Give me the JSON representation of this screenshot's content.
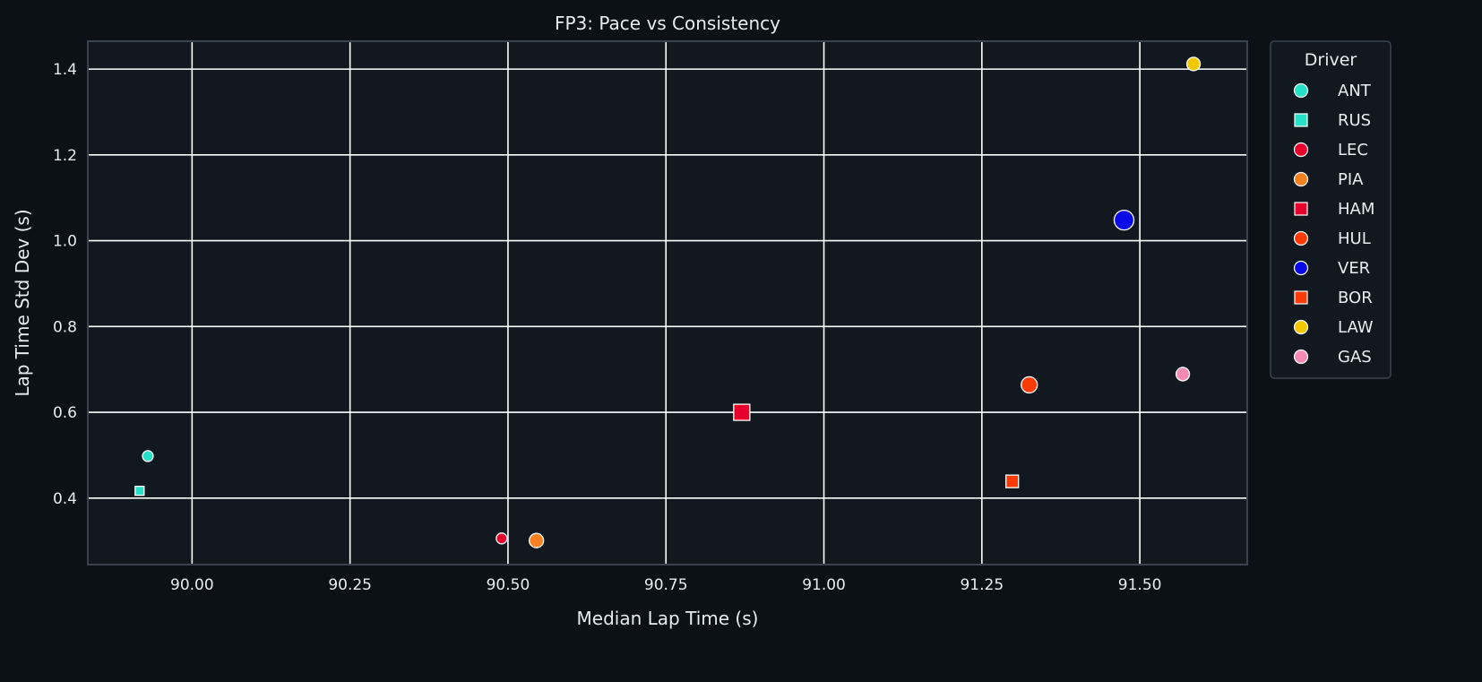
{
  "chart_data": {
    "type": "scatter",
    "title": "FP3: Pace vs Consistency",
    "xlabel": "Median Lap Time (s)",
    "ylabel": "Lap Time Std Dev (s)",
    "xlim": [
      89.835,
      91.67
    ],
    "ylim": [
      0.245,
      1.465
    ],
    "xticks": [
      90.0,
      90.25,
      90.5,
      90.75,
      91.0,
      91.25,
      91.5
    ],
    "xtick_labels": [
      "90.00",
      "90.25",
      "90.50",
      "90.75",
      "91.00",
      "91.25",
      "91.50"
    ],
    "yticks": [
      0.4,
      0.6,
      0.8,
      1.0,
      1.2,
      1.4
    ],
    "ytick_labels": [
      "0.4",
      "0.6",
      "0.8",
      "1.0",
      "1.2",
      "1.4"
    ],
    "grid": true,
    "legend": {
      "title": "Driver",
      "placement": "outside-right-top",
      "entries": [
        {
          "label": "ANT",
          "marker": "circle",
          "color": "#27e0c8"
        },
        {
          "label": "RUS",
          "marker": "square",
          "color": "#27e0c8"
        },
        {
          "label": "LEC",
          "marker": "circle",
          "color": "#e8002d"
        },
        {
          "label": "PIA",
          "marker": "circle",
          "color": "#f58020"
        },
        {
          "label": "HAM",
          "marker": "square",
          "color": "#e8002d"
        },
        {
          "label": "HUL",
          "marker": "circle",
          "color": "#fc3a06"
        },
        {
          "label": "VER",
          "marker": "circle",
          "color": "#0a0ae6"
        },
        {
          "label": "BOR",
          "marker": "square",
          "color": "#fc3a06"
        },
        {
          "label": "LAW",
          "marker": "circle",
          "color": "#f2c800"
        },
        {
          "label": "GAS",
          "marker": "circle",
          "color": "#f58bb4"
        }
      ]
    },
    "points": [
      {
        "driver": "ANT",
        "x": 89.93,
        "y": 0.498,
        "marker": "circle",
        "color": "#27e0c8",
        "size": 6
      },
      {
        "driver": "RUS",
        "x": 89.917,
        "y": 0.417,
        "marker": "square",
        "color": "#27e0c8",
        "size": 5
      },
      {
        "driver": "LEC",
        "x": 90.49,
        "y": 0.306,
        "marker": "circle",
        "color": "#e8002d",
        "size": 6
      },
      {
        "driver": "PIA",
        "x": 90.545,
        "y": 0.301,
        "marker": "circle",
        "color": "#f58020",
        "size": 8
      },
      {
        "driver": "HAM",
        "x": 90.87,
        "y": 0.6,
        "marker": "square",
        "color": "#e8002d",
        "size": 9
      },
      {
        "driver": "HUL",
        "x": 91.325,
        "y": 0.664,
        "marker": "circle",
        "color": "#fc3a06",
        "size": 9
      },
      {
        "driver": "VER",
        "x": 91.475,
        "y": 1.048,
        "marker": "circle",
        "color": "#0a0ae6",
        "size": 11
      },
      {
        "driver": "BOR",
        "x": 91.298,
        "y": 0.439,
        "marker": "square",
        "color": "#fc3a06",
        "size": 7
      },
      {
        "driver": "LAW",
        "x": 91.585,
        "y": 1.412,
        "marker": "circle",
        "color": "#f2c800",
        "size": 7.5
      },
      {
        "driver": "GAS",
        "x": 91.568,
        "y": 0.689,
        "marker": "circle",
        "color": "#f58bb4",
        "size": 7.5
      }
    ],
    "colors": {
      "figure_bg": "#0c1017",
      "axes_bg": "#121820",
      "grid": "#ffffff",
      "spine": "#3a4250",
      "text": "#e8ecf2",
      "marker_edge": "#ffffff"
    }
  }
}
